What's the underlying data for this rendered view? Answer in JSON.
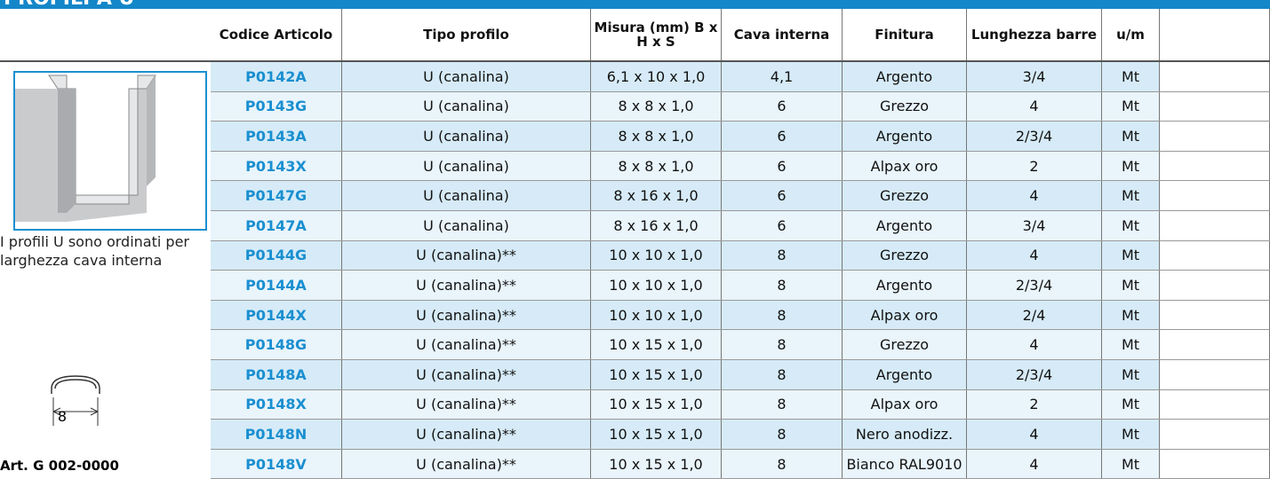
{
  "header": {
    "title": "PROFILI A U"
  },
  "table": {
    "columns": [
      "Codice Articolo",
      "Tipo profilo",
      "Misura (mm) B x H x S",
      "Cava interna",
      "Finitura",
      "Lunghezza barre",
      "u/m"
    ],
    "rows": [
      [
        "P0142A",
        "U (canalina)",
        "6,1 x 10 x 1,0",
        "4,1",
        "Argento",
        "3/4",
        "Mt"
      ],
      [
        "P0143G",
        "U (canalina)",
        "8 x 8 x 1,0",
        "6",
        "Grezzo",
        "4",
        "Mt"
      ],
      [
        "P0143A",
        "U (canalina)",
        "8 x 8 x 1,0",
        "6",
        "Argento",
        "2/3/4",
        "Mt"
      ],
      [
        "P0143X",
        "U (canalina)",
        "8 x 8 x 1,0",
        "6",
        "Alpax oro",
        "2",
        "Mt"
      ],
      [
        "P0147G",
        "U (canalina)",
        "8 x 16 x 1,0",
        "6",
        "Grezzo",
        "4",
        "Mt"
      ],
      [
        "P0147A",
        "U (canalina)",
        "8 x 16 x 1,0",
        "6",
        "Argento",
        "3/4",
        "Mt"
      ],
      [
        "P0144G",
        "U (canalina)**",
        "10 x 10 x 1,0",
        "8",
        "Grezzo",
        "4",
        "Mt"
      ],
      [
        "P0144A",
        "U (canalina)**",
        "10 x 10 x 1,0",
        "8",
        "Argento",
        "2/3/4",
        "Mt"
      ],
      [
        "P0144X",
        "U (canalina)**",
        "10 x 10 x 1,0",
        "8",
        "Alpax oro",
        "2/4",
        "Mt"
      ],
      [
        "P0148G",
        "U (canalina)**",
        "10 x 15 x 1,0",
        "8",
        "Grezzo",
        "4",
        "Mt"
      ],
      [
        "P0148A",
        "U (canalina)**",
        "10 x 15 x 1,0",
        "8",
        "Argento",
        "2/3/4",
        "Mt"
      ],
      [
        "P0148X",
        "U (canalina)**",
        "10 x 15 x 1,0",
        "8",
        "Alpax oro",
        "2",
        "Mt"
      ],
      [
        "P0148N",
        "U (canalina)**",
        "10 x 15 x 1,0",
        "8",
        "Nero anodizz.",
        "4",
        "Mt"
      ],
      [
        "P0148V",
        "U (canalina)**",
        "10 x 15 x 1,0",
        "8",
        "Bianco RAL9010",
        "4",
        "Mt"
      ]
    ]
  },
  "sidebar": {
    "note": "I profili U sono ordinati per larghezza cava interna",
    "dimension": "8",
    "article": "Art. G 002-0000"
  }
}
